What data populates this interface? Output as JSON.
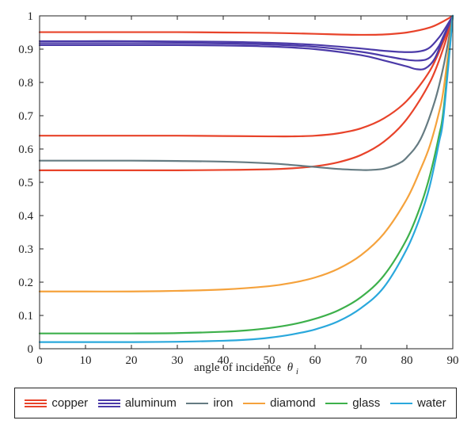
{
  "chart_data": {
    "type": "line",
    "title": "",
    "xlabel": "angle of incidence",
    "xlabel_symbol": "θ",
    "xlabel_subscript": "i",
    "ylabel": "",
    "xlim": [
      0,
      90
    ],
    "ylim": [
      0,
      1
    ],
    "xticks": [
      "0",
      "10",
      "20",
      "30",
      "40",
      "50",
      "60",
      "70",
      "80",
      "90"
    ],
    "yticks": [
      "0",
      "0.1",
      "0.2",
      "0.3",
      "0.4",
      "0.5",
      "0.6",
      "0.7",
      "0.8",
      "0.9",
      "1"
    ],
    "grid": false,
    "legend_position": "bottom",
    "legend": [
      {
        "name": "copper",
        "color": "#e8432a",
        "lines": 3
      },
      {
        "name": "aluminum",
        "color": "#4b3aa8",
        "lines": 3
      },
      {
        "name": "iron",
        "color": "#657b82",
        "lines": 1
      },
      {
        "name": "diamond",
        "color": "#f5a23c",
        "lines": 1
      },
      {
        "name": "glass",
        "color": "#3db04b",
        "lines": 1
      },
      {
        "name": "water",
        "color": "#2aa8dc",
        "lines": 1
      }
    ],
    "series": [
      {
        "name": "copper",
        "color": "#e8432a",
        "x": [
          0,
          10,
          20,
          30,
          40,
          50,
          60,
          65,
          70,
          75,
          80,
          85,
          88,
          90
        ],
        "y": [
          0.951,
          0.951,
          0.951,
          0.951,
          0.95,
          0.949,
          0.946,
          0.944,
          0.943,
          0.944,
          0.95,
          0.965,
          0.984,
          1.0
        ]
      },
      {
        "name": "copper",
        "color": "#e8432a",
        "x": [
          0,
          10,
          20,
          30,
          40,
          50,
          55,
          60,
          65,
          70,
          75,
          80,
          85,
          88,
          90
        ],
        "y": [
          0.64,
          0.64,
          0.64,
          0.64,
          0.639,
          0.638,
          0.638,
          0.64,
          0.647,
          0.662,
          0.692,
          0.745,
          0.835,
          0.925,
          1.0
        ]
      },
      {
        "name": "copper",
        "color": "#e8432a",
        "x": [
          0,
          10,
          20,
          30,
          40,
          50,
          55,
          60,
          65,
          70,
          75,
          80,
          85,
          88,
          90
        ],
        "y": [
          0.536,
          0.536,
          0.536,
          0.536,
          0.537,
          0.539,
          0.542,
          0.548,
          0.56,
          0.582,
          0.622,
          0.69,
          0.8,
          0.905,
          1.0
        ]
      },
      {
        "name": "aluminum",
        "color": "#4b3aa8",
        "x": [
          0,
          10,
          20,
          30,
          40,
          50,
          60,
          70,
          75,
          80,
          83,
          85,
          87,
          88,
          90
        ],
        "y": [
          0.924,
          0.924,
          0.924,
          0.923,
          0.922,
          0.919,
          0.913,
          0.902,
          0.895,
          0.891,
          0.894,
          0.905,
          0.935,
          0.955,
          1.0
        ]
      },
      {
        "name": "aluminum",
        "color": "#4b3aa8",
        "x": [
          0,
          10,
          20,
          30,
          40,
          50,
          60,
          70,
          75,
          80,
          83,
          85,
          87,
          88,
          90
        ],
        "y": [
          0.918,
          0.918,
          0.918,
          0.918,
          0.917,
          0.914,
          0.907,
          0.892,
          0.88,
          0.868,
          0.866,
          0.875,
          0.91,
          0.94,
          1.0
        ]
      },
      {
        "name": "aluminum",
        "color": "#4b3aa8",
        "x": [
          0,
          10,
          20,
          30,
          40,
          50,
          60,
          70,
          75,
          80,
          82,
          84,
          86,
          88,
          90
        ],
        "y": [
          0.912,
          0.912,
          0.912,
          0.912,
          0.911,
          0.908,
          0.9,
          0.882,
          0.866,
          0.848,
          0.84,
          0.842,
          0.87,
          0.935,
          1.0
        ]
      },
      {
        "name": "iron",
        "color": "#657b82",
        "x": [
          0,
          10,
          20,
          30,
          40,
          50,
          55,
          60,
          65,
          70,
          72,
          75,
          78,
          80,
          83,
          86,
          88,
          90
        ],
        "y": [
          0.565,
          0.565,
          0.565,
          0.564,
          0.562,
          0.557,
          0.552,
          0.546,
          0.54,
          0.537,
          0.537,
          0.541,
          0.555,
          0.575,
          0.63,
          0.74,
          0.85,
          1.0
        ]
      },
      {
        "name": "diamond",
        "color": "#f5a23c",
        "x": [
          0,
          10,
          20,
          30,
          40,
          50,
          55,
          60,
          65,
          70,
          75,
          80,
          83,
          85,
          87,
          88,
          90
        ],
        "y": [
          0.172,
          0.172,
          0.172,
          0.174,
          0.178,
          0.188,
          0.198,
          0.214,
          0.24,
          0.281,
          0.346,
          0.45,
          0.54,
          0.61,
          0.71,
          0.78,
          1.0
        ]
      },
      {
        "name": "glass",
        "color": "#3db04b",
        "x": [
          0,
          10,
          20,
          30,
          40,
          45,
          50,
          55,
          60,
          65,
          70,
          75,
          80,
          83,
          85,
          87,
          88,
          90
        ],
        "y": [
          0.046,
          0.046,
          0.046,
          0.047,
          0.051,
          0.055,
          0.062,
          0.073,
          0.09,
          0.115,
          0.155,
          0.22,
          0.33,
          0.43,
          0.52,
          0.64,
          0.72,
          1.0
        ]
      },
      {
        "name": "water",
        "color": "#2aa8dc",
        "x": [
          0,
          10,
          20,
          30,
          40,
          45,
          50,
          55,
          60,
          65,
          70,
          75,
          80,
          83,
          85,
          87,
          88,
          90
        ],
        "y": [
          0.02,
          0.02,
          0.02,
          0.021,
          0.024,
          0.027,
          0.033,
          0.043,
          0.058,
          0.082,
          0.122,
          0.185,
          0.3,
          0.4,
          0.49,
          0.62,
          0.7,
          1.0
        ]
      }
    ]
  }
}
